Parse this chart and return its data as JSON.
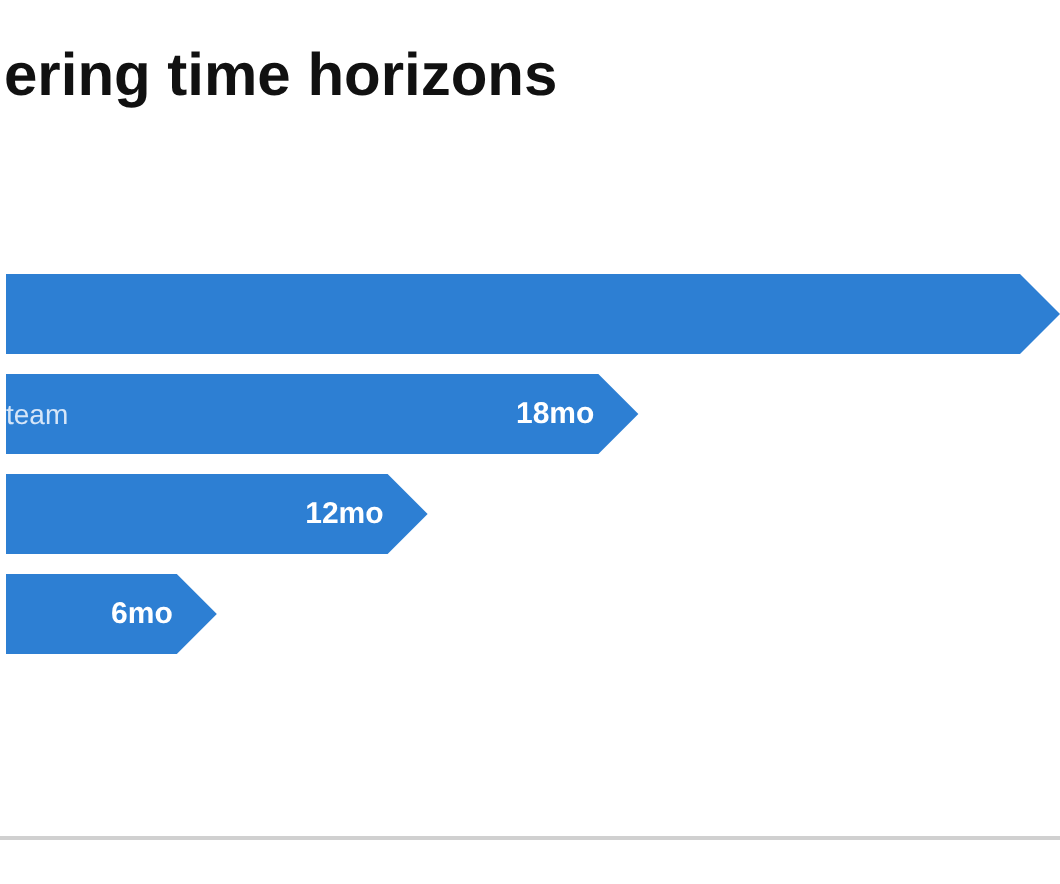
{
  "chart_data": {
    "type": "bar",
    "orientation": "horizontal",
    "title": "ering time horizons",
    "categories": [
      null,
      "team",
      null,
      null
    ],
    "values": [
      30,
      18,
      12,
      6
    ],
    "value_labels": [
      null,
      "18mo",
      "12mo",
      "6mo"
    ],
    "color": "#2d7fd3",
    "tick_labels": "y",
    "grid": false
  }
}
